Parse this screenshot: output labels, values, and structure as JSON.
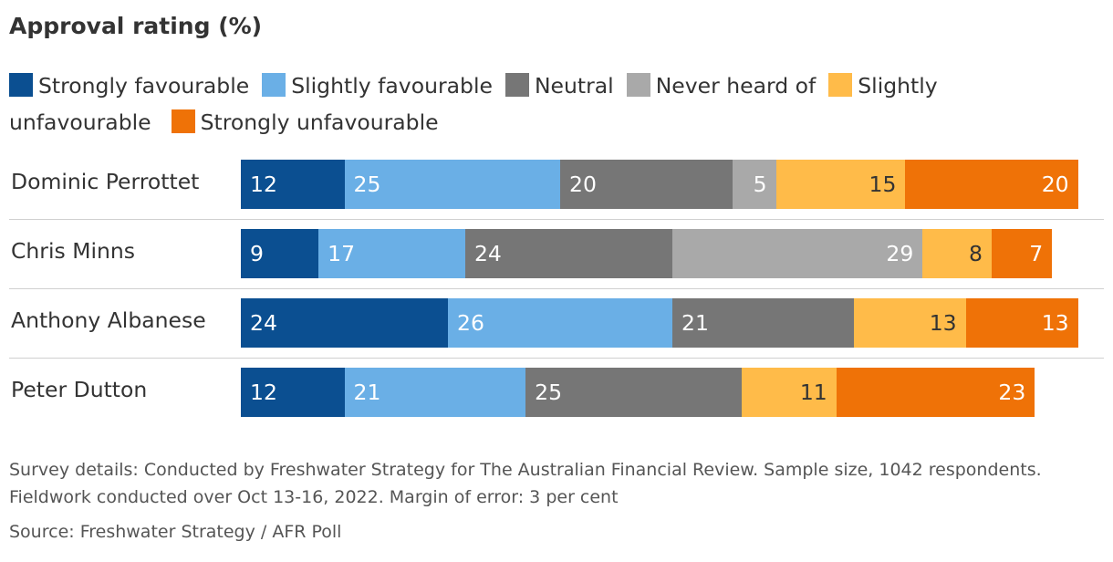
{
  "chart_data": {
    "type": "bar",
    "orientation": "horizontal",
    "stacked": true,
    "title": "Approval rating (%)",
    "categories": [
      "Dominic Perrottet",
      "Chris Minns",
      "Anthony Albanese",
      "Peter Dutton"
    ],
    "series": [
      {
        "name": "Strongly favourable",
        "color": "#0b4f91",
        "values": [
          12,
          9,
          24,
          12
        ]
      },
      {
        "name": "Slightly favourable",
        "color": "#6aafe6",
        "values": [
          25,
          17,
          26,
          21
        ]
      },
      {
        "name": "Neutral",
        "color": "#767676",
        "values": [
          20,
          24,
          21,
          25
        ]
      },
      {
        "name": "Never heard of",
        "color": "#a9a9a9",
        "values": [
          5,
          29,
          0,
          0
        ]
      },
      {
        "name": "Slightly unfavourable",
        "color": "#ffbb49",
        "values": [
          15,
          8,
          13,
          11
        ]
      },
      {
        "name": "Strongly unfavourable",
        "color": "#ef7207",
        "values": [
          20,
          7,
          13,
          23
        ]
      }
    ],
    "legend_position": "top",
    "grid": false
  },
  "legend_line1": [
    "Strongly favourable",
    "Slightly favourable",
    "Neutral",
    "Never heard of",
    "Slightly"
  ],
  "legend_wrap": "unfavourable",
  "note": "Survey details: Conducted by Freshwater Strategy for The Australian Financial Review. Sample size, 1042 respondents. Fieldwork conducted over Oct 13-16, 2022. Margin of error: 3 per cent",
  "source": "Source: Freshwater Strategy / AFR Poll"
}
